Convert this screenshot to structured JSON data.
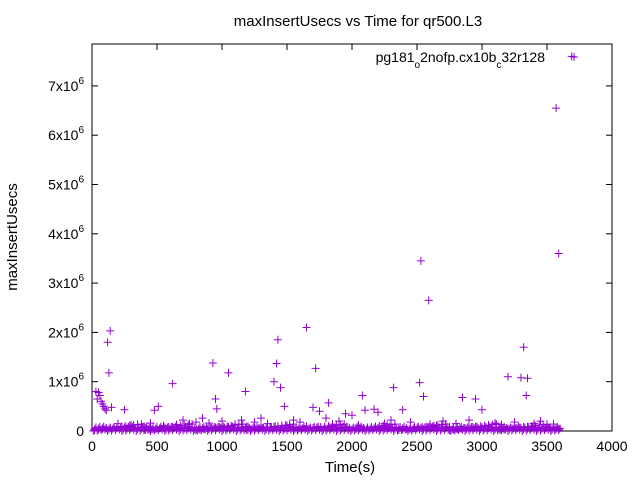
{
  "chart_data": {
    "type": "scatter",
    "title": "maxInsertUsecs vs Time for qr500.L3",
    "xlabel": "Time(s)",
    "ylabel": "maxInsertUsecs",
    "xlim": [
      0,
      4000
    ],
    "ylim": [
      0,
      7850000
    ],
    "x_ticks": [
      0,
      500,
      1000,
      1500,
      2000,
      2500,
      3000,
      3500,
      4000
    ],
    "x_tick_labels": [
      "0",
      "500",
      "1000",
      "1500",
      "2000",
      "2500",
      "3000",
      "3500",
      "4000"
    ],
    "y_ticks": [
      0,
      1000000,
      2000000,
      3000000,
      4000000,
      5000000,
      6000000,
      7000000
    ],
    "y_tick_labels": [
      {
        "base": "0",
        "exp": ""
      },
      {
        "base": "1x10",
        "exp": "6"
      },
      {
        "base": "2x10",
        "exp": "6"
      },
      {
        "base": "3x10",
        "exp": "6"
      },
      {
        "base": "4x10",
        "exp": "6"
      },
      {
        "base": "5x10",
        "exp": "6"
      },
      {
        "base": "6x10",
        "exp": "6"
      },
      {
        "base": "7x10",
        "exp": "6"
      }
    ],
    "grid": false,
    "legend_position": "top-right",
    "series": [
      {
        "name": "pg181_o2nofp.cx10b_c32r128",
        "name_parts": [
          {
            "text": "pg181",
            "sub": false
          },
          {
            "text": "o",
            "sub": true
          },
          {
            "text": "2nofp.cx10b",
            "sub": false
          },
          {
            "text": "c",
            "sub": true
          },
          {
            "text": "32r128",
            "sub": false
          }
        ],
        "color": "#9400d3",
        "marker": "plus",
        "points": [
          [
            3690,
            7600000
          ],
          [
            3570,
            6550000
          ],
          [
            3590,
            3600000
          ],
          [
            2530,
            3450000
          ],
          [
            2590,
            2650000
          ],
          [
            1650,
            2100000
          ],
          [
            140,
            2030000
          ],
          [
            120,
            1800000
          ],
          [
            1430,
            1850000
          ],
          [
            3320,
            1700000
          ],
          [
            930,
            1380000
          ],
          [
            1420,
            1370000
          ],
          [
            1050,
            1180000
          ],
          [
            1720,
            1270000
          ],
          [
            130,
            1180000
          ],
          [
            3200,
            1100000
          ],
          [
            3300,
            1080000
          ],
          [
            3350,
            1070000
          ],
          [
            1400,
            1000000
          ],
          [
            2520,
            980000
          ],
          [
            620,
            960000
          ],
          [
            1180,
            800000
          ],
          [
            1450,
            880000
          ],
          [
            2320,
            880000
          ],
          [
            3340,
            720000
          ],
          [
            30,
            800000
          ],
          [
            50,
            780000
          ],
          [
            60,
            720000
          ],
          [
            40,
            650000
          ],
          [
            70,
            600000
          ],
          [
            80,
            550000
          ],
          [
            90,
            500000
          ],
          [
            100,
            450000
          ],
          [
            110,
            420000
          ],
          [
            150,
            480000
          ],
          [
            250,
            430000
          ],
          [
            480,
            420000
          ],
          [
            510,
            500000
          ],
          [
            950,
            650000
          ],
          [
            960,
            450000
          ],
          [
            1480,
            500000
          ],
          [
            1700,
            480000
          ],
          [
            1750,
            400000
          ],
          [
            1820,
            570000
          ],
          [
            1950,
            350000
          ],
          [
            2000,
            320000
          ],
          [
            2080,
            720000
          ],
          [
            2100,
            420000
          ],
          [
            2170,
            440000
          ],
          [
            2200,
            380000
          ],
          [
            2390,
            430000
          ],
          [
            2550,
            700000
          ],
          [
            2850,
            680000
          ],
          [
            2950,
            650000
          ],
          [
            3000,
            430000
          ],
          [
            700,
            220000
          ],
          [
            750,
            150000
          ],
          [
            800,
            180000
          ],
          [
            850,
            260000
          ],
          [
            900,
            160000
          ],
          [
            1000,
            200000
          ],
          [
            1100,
            140000
          ],
          [
            1150,
            220000
          ],
          [
            1250,
            180000
          ],
          [
            1300,
            260000
          ],
          [
            1350,
            150000
          ],
          [
            1550,
            220000
          ],
          [
            1600,
            180000
          ],
          [
            1800,
            260000
          ],
          [
            1850,
            140000
          ],
          [
            1900,
            200000
          ],
          [
            2250,
            150000
          ],
          [
            2300,
            220000
          ],
          [
            2450,
            180000
          ],
          [
            2600,
            140000
          ],
          [
            2700,
            200000
          ],
          [
            2800,
            150000
          ],
          [
            2900,
            220000
          ],
          [
            3100,
            160000
          ],
          [
            3150,
            130000
          ],
          [
            3250,
            180000
          ],
          [
            3400,
            150000
          ],
          [
            3450,
            200000
          ],
          [
            3500,
            120000
          ],
          [
            3550,
            140000
          ],
          [
            200,
            150000
          ],
          [
            300,
            120000
          ],
          [
            350,
            130000
          ],
          [
            400,
            100000
          ],
          [
            450,
            160000
          ],
          [
            550,
            110000
          ],
          [
            650,
            130000
          ],
          [
            1200,
            90000
          ],
          [
            1500,
            110000
          ],
          [
            1650,
            100000
          ],
          [
            2050,
            120000
          ],
          [
            2400,
            90000
          ],
          [
            2650,
            110000
          ],
          [
            2750,
            80000
          ],
          [
            3050,
            100000
          ]
        ]
      }
    ]
  }
}
